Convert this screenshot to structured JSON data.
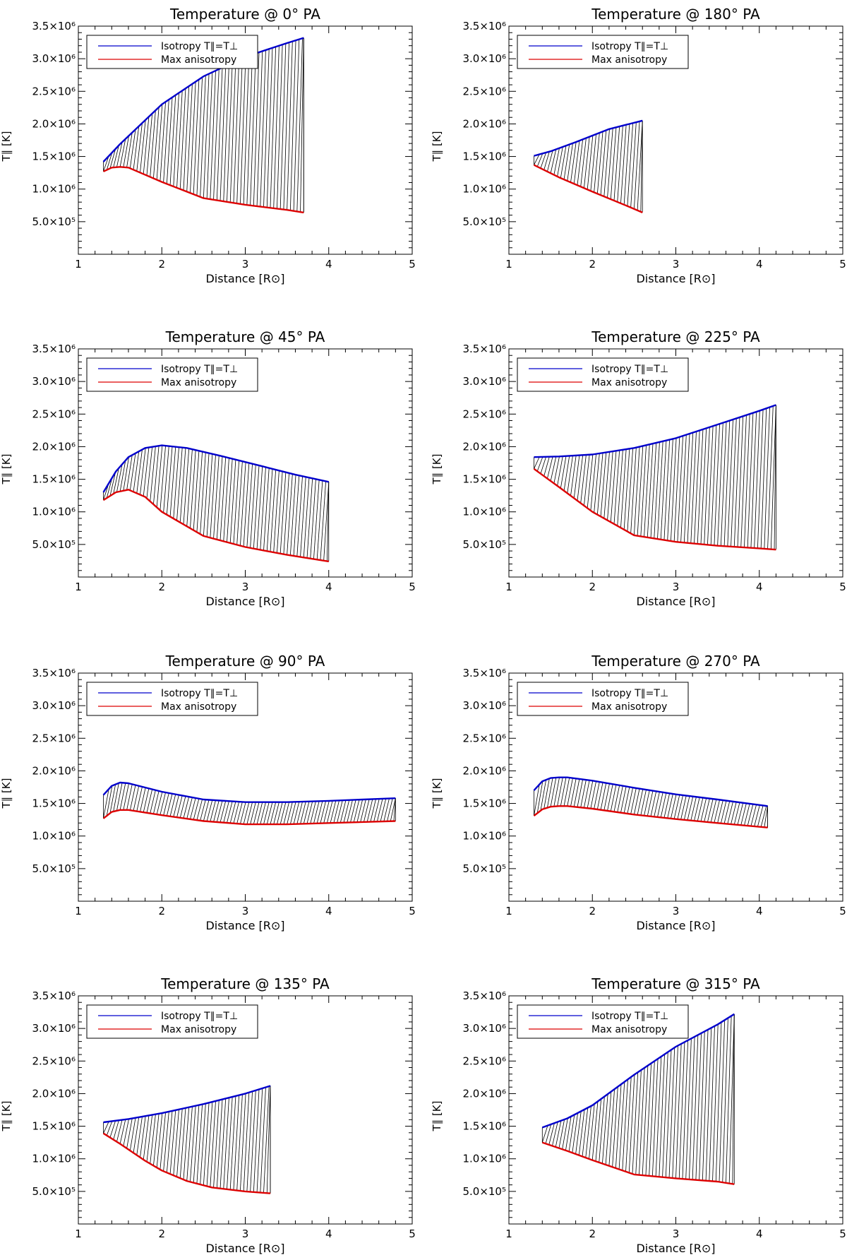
{
  "figure": {
    "panel_order": [
      "0° PA",
      "180° PA",
      "45° PA",
      "225° PA",
      "90° PA",
      "270° PA",
      "135° PA",
      "315° PA"
    ]
  },
  "colors": {
    "isotropy": "#0000cc",
    "anisotropy": "#dd0000",
    "hatch": "#000000",
    "axes": "#000000"
  },
  "chart_data": [
    {
      "type": "line",
      "title": "Temperature @ 0° PA",
      "xlabel": "Distance [R⊙]",
      "ylabel": "T∥ [K]",
      "xlim": [
        1,
        5
      ],
      "ylim": [
        0,
        3500000
      ],
      "xticks": [
        1,
        2,
        3,
        4,
        5
      ],
      "xtick_labels": [
        "1",
        "2",
        "3",
        "4",
        "5"
      ],
      "yticks": [
        500000,
        1000000,
        1500000,
        2000000,
        2500000,
        3000000,
        3500000
      ],
      "ytick_labels": [
        "5.0×10⁵",
        "1.0×10⁶",
        "1.5×10⁶",
        "2.0×10⁶",
        "2.5×10⁶",
        "3.0×10⁶",
        "3.5×10⁶"
      ],
      "legend": [
        "Isotropy T∥=T⊥",
        "Max anisotropy"
      ],
      "legend_position": "top-left",
      "shaded_between_series": "hatched",
      "series": [
        {
          "name": "Isotropy T∥=T⊥",
          "x": [
            1.3,
            1.5,
            2.0,
            2.5,
            3.0,
            3.5,
            3.7
          ],
          "values": [
            1420000,
            1690000,
            2300000,
            2730000,
            3030000,
            3240000,
            3320000
          ]
        },
        {
          "name": "Max anisotropy",
          "x": [
            1.3,
            1.4,
            1.5,
            1.6,
            2.0,
            2.5,
            3.0,
            3.5,
            3.7
          ],
          "values": [
            1270000,
            1330000,
            1340000,
            1330000,
            1110000,
            860000,
            760000,
            680000,
            640000
          ]
        }
      ]
    },
    {
      "type": "line",
      "title": "Temperature @ 180° PA",
      "xlabel": "Distance [R⊙]",
      "ylabel": "T∥ [K]",
      "xlim": [
        1,
        5
      ],
      "ylim": [
        0,
        3500000
      ],
      "xticks": [
        1,
        2,
        3,
        4,
        5
      ],
      "xtick_labels": [
        "1",
        "2",
        "3",
        "4",
        "5"
      ],
      "yticks": [
        500000,
        1000000,
        1500000,
        2000000,
        2500000,
        3000000,
        3500000
      ],
      "ytick_labels": [
        "5.0×10⁵",
        "1.0×10⁶",
        "1.5×10⁶",
        "2.0×10⁶",
        "2.5×10⁶",
        "3.0×10⁶",
        "3.5×10⁶"
      ],
      "legend": [
        "Isotropy T∥=T⊥",
        "Max anisotropy"
      ],
      "legend_position": "top-left",
      "shaded_between_series": "hatched",
      "series": [
        {
          "name": "Isotropy T∥=T⊥",
          "x": [
            1.3,
            1.5,
            1.8,
            2.2,
            2.6
          ],
          "values": [
            1510000,
            1580000,
            1720000,
            1920000,
            2050000
          ]
        },
        {
          "name": "Max anisotropy",
          "x": [
            1.3,
            1.6,
            2.0,
            2.4,
            2.6
          ],
          "values": [
            1370000,
            1180000,
            960000,
            750000,
            640000
          ]
        }
      ]
    },
    {
      "type": "line",
      "title": "Temperature @ 45° PA",
      "xlabel": "Distance [R⊙]",
      "ylabel": "T∥ [K]",
      "xlim": [
        1,
        5
      ],
      "ylim": [
        0,
        3500000
      ],
      "xticks": [
        1,
        2,
        3,
        4,
        5
      ],
      "xtick_labels": [
        "1",
        "2",
        "3",
        "4",
        "5"
      ],
      "yticks": [
        500000,
        1000000,
        1500000,
        2000000,
        2500000,
        3000000,
        3500000
      ],
      "ytick_labels": [
        "5.0×10⁵",
        "1.0×10⁶",
        "1.5×10⁶",
        "2.0×10⁶",
        "2.5×10⁶",
        "3.0×10⁶",
        "3.5×10⁶"
      ],
      "legend": [
        "Isotropy T∥=T⊥",
        "Max anisotropy"
      ],
      "legend_position": "top-left",
      "shaded_between_series": "hatched",
      "series": [
        {
          "name": "Isotropy T∥=T⊥",
          "x": [
            1.3,
            1.45,
            1.6,
            1.8,
            2.0,
            2.3,
            2.7,
            3.2,
            3.6,
            4.0
          ],
          "values": [
            1300000,
            1620000,
            1840000,
            1980000,
            2020000,
            1980000,
            1860000,
            1700000,
            1570000,
            1460000
          ]
        },
        {
          "name": "Max anisotropy",
          "x": [
            1.3,
            1.45,
            1.6,
            1.8,
            2.0,
            2.5,
            3.0,
            3.5,
            4.0
          ],
          "values": [
            1180000,
            1300000,
            1340000,
            1230000,
            1000000,
            630000,
            460000,
            340000,
            240000
          ]
        }
      ]
    },
    {
      "type": "line",
      "title": "Temperature @ 225° PA",
      "xlabel": "Distance [R⊙]",
      "ylabel": "T∥ [K]",
      "xlim": [
        1,
        5
      ],
      "ylim": [
        0,
        3500000
      ],
      "xticks": [
        1,
        2,
        3,
        4,
        5
      ],
      "xtick_labels": [
        "1",
        "2",
        "3",
        "4",
        "5"
      ],
      "yticks": [
        500000,
        1000000,
        1500000,
        2000000,
        2500000,
        3000000,
        3500000
      ],
      "ytick_labels": [
        "5.0×10⁵",
        "1.0×10⁶",
        "1.5×10⁶",
        "2.0×10⁶",
        "2.5×10⁶",
        "3.0×10⁶",
        "3.5×10⁶"
      ],
      "legend": [
        "Isotropy T∥=T⊥",
        "Max anisotropy"
      ],
      "legend_position": "top-left",
      "shaded_between_series": "hatched",
      "series": [
        {
          "name": "Isotropy T∥=T⊥",
          "x": [
            1.3,
            1.6,
            2.0,
            2.5,
            3.0,
            3.5,
            4.0,
            4.2
          ],
          "values": [
            1840000,
            1850000,
            1880000,
            1980000,
            2130000,
            2340000,
            2550000,
            2640000
          ]
        },
        {
          "name": "Max anisotropy",
          "x": [
            1.3,
            1.6,
            2.0,
            2.5,
            3.0,
            3.5,
            4.0,
            4.2
          ],
          "values": [
            1660000,
            1380000,
            1000000,
            640000,
            540000,
            480000,
            440000,
            420000
          ]
        }
      ]
    },
    {
      "type": "line",
      "title": "Temperature @ 90° PA",
      "xlabel": "Distance [R⊙]",
      "ylabel": "T∥ [K]",
      "xlim": [
        1,
        5
      ],
      "ylim": [
        0,
        3500000
      ],
      "xticks": [
        1,
        2,
        3,
        4,
        5
      ],
      "xtick_labels": [
        "1",
        "2",
        "3",
        "4",
        "5"
      ],
      "yticks": [
        500000,
        1000000,
        1500000,
        2000000,
        2500000,
        3000000,
        3500000
      ],
      "ytick_labels": [
        "5.0×10⁵",
        "1.0×10⁶",
        "1.5×10⁶",
        "2.0×10⁶",
        "2.5×10⁶",
        "3.0×10⁶",
        "3.5×10⁶"
      ],
      "legend": [
        "Isotropy T∥=T⊥",
        "Max anisotropy"
      ],
      "legend_position": "top-left",
      "shaded_between_series": "hatched",
      "series": [
        {
          "name": "Isotropy T∥=T⊥",
          "x": [
            1.3,
            1.4,
            1.5,
            1.6,
            2.0,
            2.5,
            3.0,
            3.5,
            4.0,
            4.8
          ],
          "values": [
            1630000,
            1770000,
            1820000,
            1810000,
            1680000,
            1560000,
            1520000,
            1520000,
            1540000,
            1580000
          ]
        },
        {
          "name": "Max anisotropy",
          "x": [
            1.3,
            1.4,
            1.5,
            1.6,
            2.0,
            2.5,
            3.0,
            3.5,
            4.0,
            4.8
          ],
          "values": [
            1270000,
            1370000,
            1400000,
            1400000,
            1320000,
            1230000,
            1180000,
            1180000,
            1200000,
            1230000
          ]
        }
      ]
    },
    {
      "type": "line",
      "title": "Temperature @ 270° PA",
      "xlabel": "Distance [R⊙]",
      "ylabel": "T∥ [K]",
      "xlim": [
        1,
        5
      ],
      "ylim": [
        0,
        3500000
      ],
      "xticks": [
        1,
        2,
        3,
        4,
        5
      ],
      "xtick_labels": [
        "1",
        "2",
        "3",
        "4",
        "5"
      ],
      "yticks": [
        500000,
        1000000,
        1500000,
        2000000,
        2500000,
        3000000,
        3500000
      ],
      "ytick_labels": [
        "5.0×10⁵",
        "1.0×10⁶",
        "1.5×10⁶",
        "2.0×10⁶",
        "2.5×10⁶",
        "3.0×10⁶",
        "3.5×10⁶"
      ],
      "legend": [
        "Isotropy T∥=T⊥",
        "Max anisotropy"
      ],
      "legend_position": "top-left",
      "shaded_between_series": "hatched",
      "series": [
        {
          "name": "Isotropy T∥=T⊥",
          "x": [
            1.3,
            1.4,
            1.5,
            1.6,
            1.7,
            2.0,
            2.5,
            3.0,
            3.5,
            4.1
          ],
          "values": [
            1700000,
            1840000,
            1890000,
            1900000,
            1900000,
            1850000,
            1740000,
            1640000,
            1560000,
            1460000
          ]
        },
        {
          "name": "Max anisotropy",
          "x": [
            1.3,
            1.4,
            1.5,
            1.6,
            1.7,
            2.0,
            2.5,
            3.0,
            3.5,
            4.1
          ],
          "values": [
            1310000,
            1410000,
            1450000,
            1460000,
            1460000,
            1420000,
            1330000,
            1260000,
            1200000,
            1130000
          ]
        }
      ]
    },
    {
      "type": "line",
      "title": "Temperature @ 135° PA",
      "xlabel": "Distance [R⊙]",
      "ylabel": "T∥ [K]",
      "xlim": [
        1,
        5
      ],
      "ylim": [
        0,
        3500000
      ],
      "xticks": [
        1,
        2,
        3,
        4,
        5
      ],
      "xtick_labels": [
        "1",
        "2",
        "3",
        "4",
        "5"
      ],
      "yticks": [
        500000,
        1000000,
        1500000,
        2000000,
        2500000,
        3000000,
        3500000
      ],
      "ytick_labels": [
        "5.0×10⁵",
        "1.0×10⁶",
        "1.5×10⁶",
        "2.0×10⁶",
        "2.5×10⁶",
        "3.0×10⁶",
        "3.5×10⁶"
      ],
      "legend": [
        "Isotropy T∥=T⊥",
        "Max anisotropy"
      ],
      "legend_position": "top-left",
      "shaded_between_series": "hatched",
      "series": [
        {
          "name": "Isotropy T∥=T⊥",
          "x": [
            1.3,
            1.6,
            2.0,
            2.5,
            3.0,
            3.3
          ],
          "values": [
            1560000,
            1610000,
            1700000,
            1840000,
            2000000,
            2120000
          ]
        },
        {
          "name": "Max anisotropy",
          "x": [
            1.3,
            1.5,
            1.8,
            2.0,
            2.3,
            2.6,
            3.0,
            3.3
          ],
          "values": [
            1390000,
            1230000,
            970000,
            820000,
            660000,
            560000,
            500000,
            470000
          ]
        }
      ]
    },
    {
      "type": "line",
      "title": "Temperature @ 315° PA",
      "xlabel": "Distance [R⊙]",
      "ylabel": "T∥ [K]",
      "xlim": [
        1,
        5
      ],
      "ylim": [
        0,
        3500000
      ],
      "xticks": [
        1,
        2,
        3,
        4,
        5
      ],
      "xtick_labels": [
        "1",
        "2",
        "3",
        "4",
        "5"
      ],
      "yticks": [
        500000,
        1000000,
        1500000,
        2000000,
        2500000,
        3000000,
        3500000
      ],
      "ytick_labels": [
        "5.0×10⁵",
        "1.0×10⁶",
        "1.5×10⁶",
        "2.0×10⁶",
        "2.5×10⁶",
        "3.0×10⁶",
        "3.5×10⁶"
      ],
      "legend": [
        "Isotropy T∥=T⊥",
        "Max anisotropy"
      ],
      "legend_position": "top-left",
      "shaded_between_series": "hatched",
      "series": [
        {
          "name": "Isotropy T∥=T⊥",
          "x": [
            1.4,
            1.7,
            2.0,
            2.5,
            3.0,
            3.5,
            3.7
          ],
          "values": [
            1480000,
            1620000,
            1820000,
            2290000,
            2720000,
            3060000,
            3220000
          ]
        },
        {
          "name": "Max anisotropy",
          "x": [
            1.4,
            1.7,
            2.0,
            2.5,
            3.0,
            3.5,
            3.7
          ],
          "values": [
            1250000,
            1120000,
            980000,
            760000,
            700000,
            650000,
            610000
          ]
        }
      ]
    }
  ]
}
